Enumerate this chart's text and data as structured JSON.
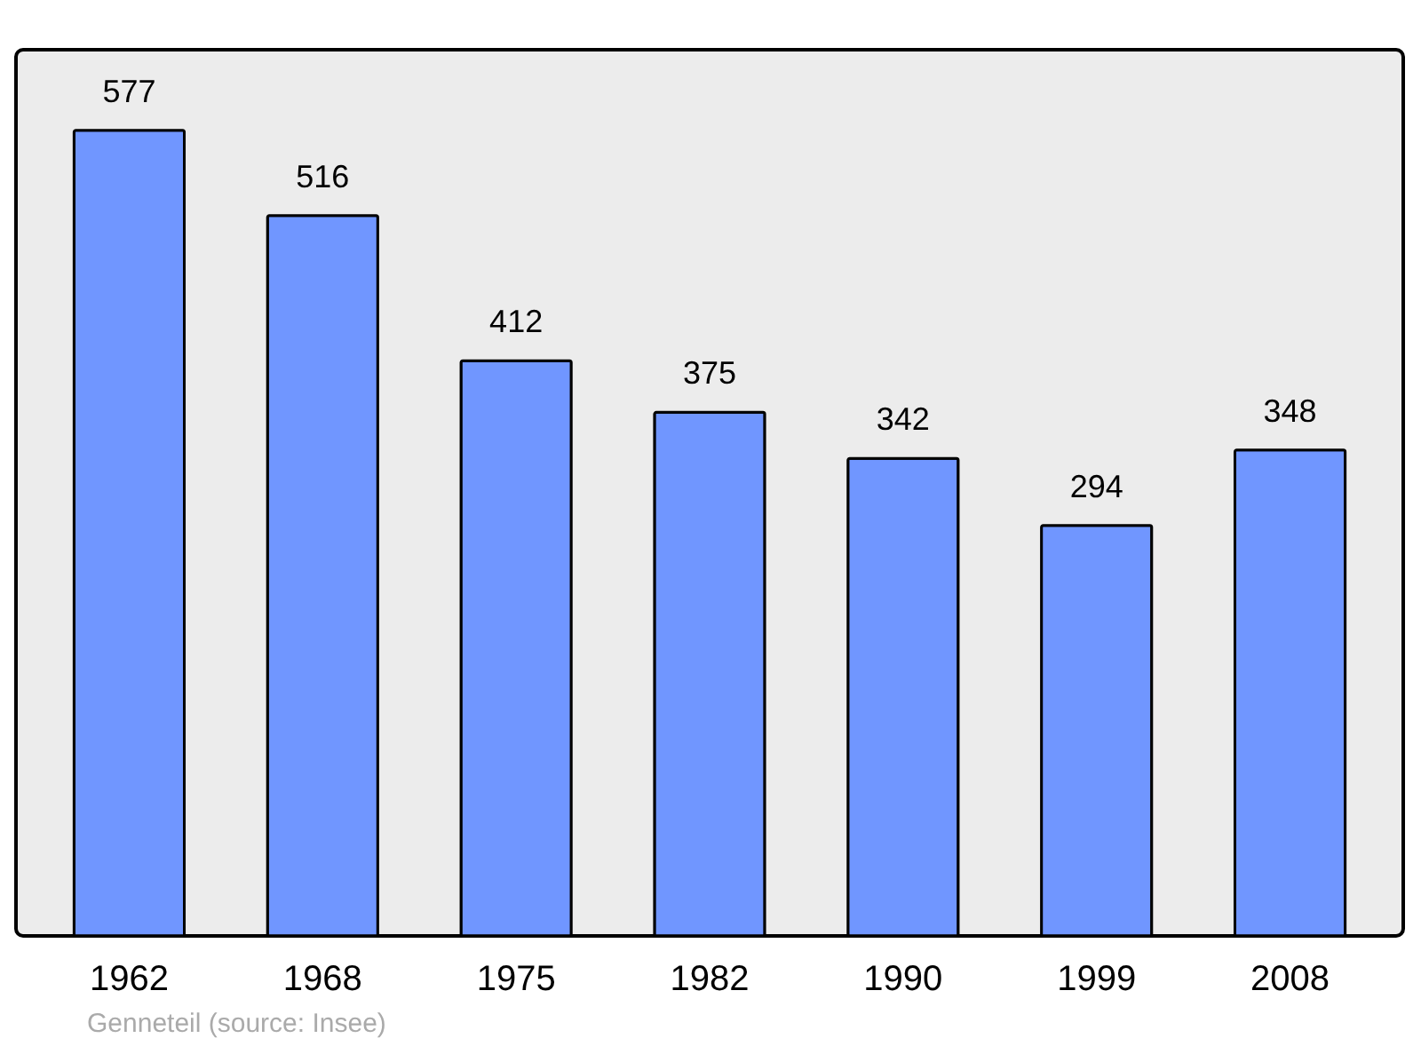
{
  "chart_data": {
    "type": "bar",
    "categories": [
      "1962",
      "1968",
      "1975",
      "1982",
      "1990",
      "1999",
      "2008"
    ],
    "values": [
      577,
      516,
      412,
      375,
      342,
      294,
      348
    ],
    "color": "#7096ff",
    "data_labels": true,
    "annotations": [
      "Genneteil    (source: Insee)"
    ]
  }
}
